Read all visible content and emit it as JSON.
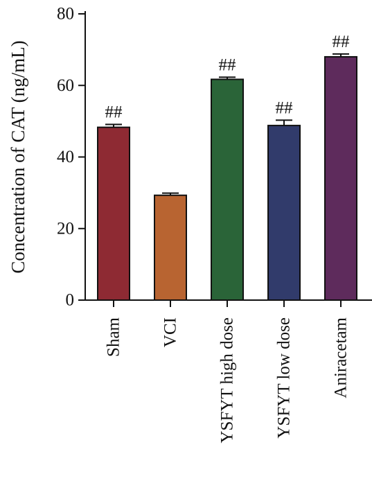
{
  "chart_data": {
    "type": "bar",
    "title": "",
    "xlabel": "",
    "ylabel": "Concentration of CAT (ng/mL)",
    "ylim": [
      0,
      80
    ],
    "yticks": [
      0,
      20,
      40,
      60,
      80
    ],
    "yticks_text": [
      "0",
      "20",
      "40",
      "60",
      "80"
    ],
    "categories": [
      "Sham",
      "VCI",
      "YSFYT high dose",
      "YSFYT low dose",
      "Aniracetam"
    ],
    "values": [
      48.3,
      29.3,
      61.7,
      48.8,
      68.0
    ],
    "errors": [
      0.8,
      0.6,
      0.6,
      1.5,
      0.8
    ],
    "annotations": [
      "##",
      "",
      "##",
      "##",
      "##"
    ],
    "colors": [
      "#8E2A33",
      "#B86431",
      "#2A6438",
      "#313B6B",
      "#5E2B5C"
    ],
    "grid": false,
    "legend": "none"
  }
}
